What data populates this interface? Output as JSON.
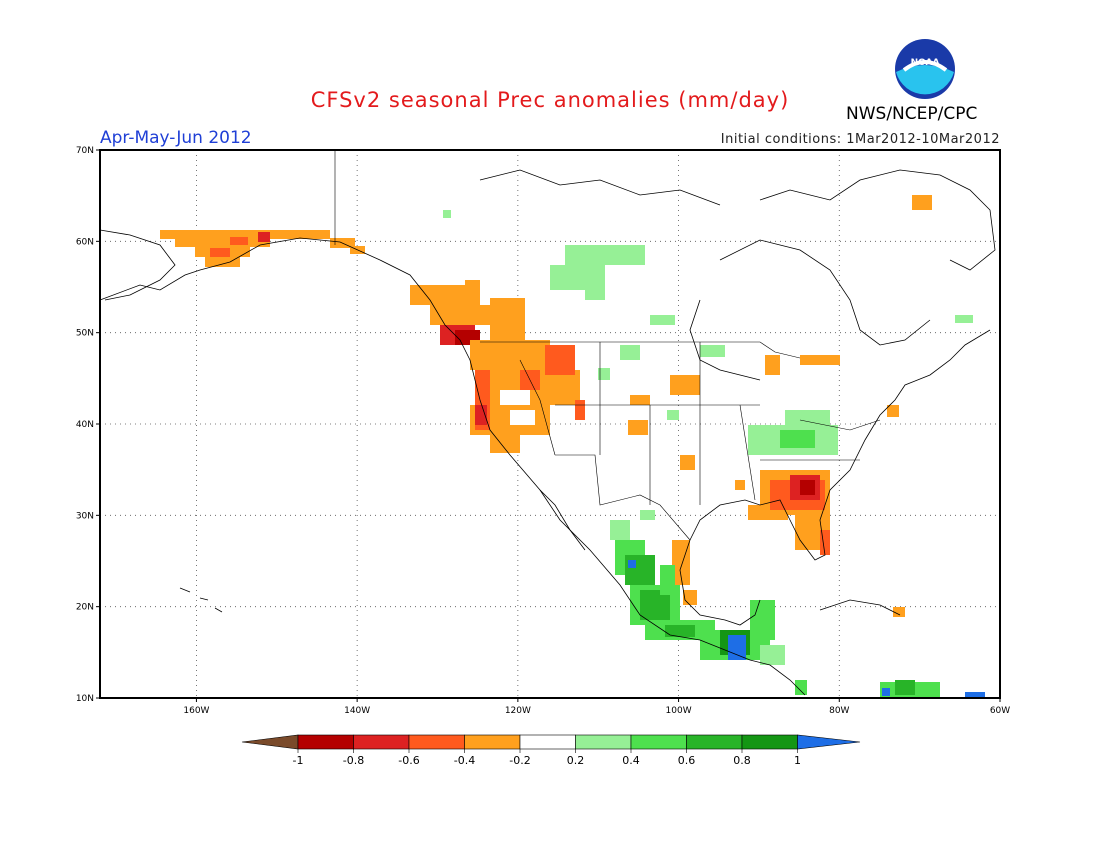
{
  "title": "CFSv2 seasonal Prec anomalies (mm/day)",
  "season": "Apr-May-Jun 2012",
  "initial_conditions": "Initial conditions: 1Mar2012-10Mar2012",
  "agency": "NWS/NCEP/CPC",
  "logo_text": "NOAA",
  "map": {
    "lat_range": [
      10,
      70
    ],
    "lon_range": [
      -172,
      -60
    ],
    "lat_ticks": [
      {
        "value": 70,
        "label": "70N"
      },
      {
        "value": 60,
        "label": "60N"
      },
      {
        "value": 50,
        "label": "50N"
      },
      {
        "value": 40,
        "label": "40N"
      },
      {
        "value": 30,
        "label": "30N"
      },
      {
        "value": 20,
        "label": "20N"
      },
      {
        "value": 10,
        "label": "10N"
      }
    ],
    "lon_ticks": [
      {
        "value": -160,
        "label": "160W"
      },
      {
        "value": -140,
        "label": "140W"
      },
      {
        "value": -120,
        "label": "120W"
      },
      {
        "value": -100,
        "label": "100W"
      },
      {
        "value": -80,
        "label": "80W"
      },
      {
        "value": -60,
        "label": "60W"
      }
    ],
    "grid": "dotted"
  },
  "colorbar": {
    "labels": [
      "-1",
      "-0.8",
      "-0.6",
      "-0.4",
      "-0.2",
      "0.2",
      "0.4",
      "0.6",
      "0.8",
      "1"
    ],
    "colors": [
      "#7a4a2a",
      "#b40000",
      "#dd2222",
      "#ff5a1e",
      "#ffa01e",
      "#ffffff",
      "#96f096",
      "#4ee04e",
      "#28b428",
      "#149614",
      "#1e6ee6"
    ]
  },
  "colors": {
    "dry_strong": "#b40000",
    "dry_mid": "#dd2222",
    "dry_light": "#ff5a1e",
    "dry_weak": "#ffa01e",
    "wet_weak": "#96f096",
    "wet_light": "#4ee04e",
    "wet_mid": "#28b428",
    "wet_strong": "#149614",
    "wet_max": "#1e6ee6"
  }
}
